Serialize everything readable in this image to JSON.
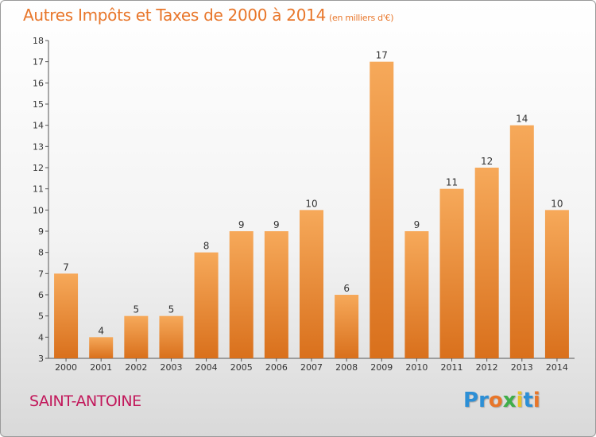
{
  "header": {
    "title": "Autres Impôts et Taxes de 2000 à 2014",
    "unit": "(en milliers d'€)"
  },
  "footer": {
    "commune": "SAINT-ANTOINE",
    "logo_letters": [
      {
        "ch": "P",
        "color": "#2c8fd6"
      },
      {
        "ch": "r",
        "color": "#2c8fd6"
      },
      {
        "ch": "o",
        "color": "#e8762a"
      },
      {
        "ch": "x",
        "color": "#3fae49"
      },
      {
        "ch": "i",
        "color": "#e8c22a"
      },
      {
        "ch": "t",
        "color": "#2c8fd6"
      },
      {
        "ch": "i",
        "color": "#e8762a"
      }
    ]
  },
  "colors": {
    "accent": "#e8762a",
    "bar_light": "#f6a95a",
    "bar_dark": "#d9701c",
    "commune": "#c2185b"
  },
  "chart_data": {
    "type": "bar",
    "title": "Autres Impôts et Taxes de 2000 à 2014",
    "xlabel": "",
    "ylabel": "",
    "categories": [
      "2000",
      "2001",
      "2002",
      "2003",
      "2004",
      "2005",
      "2006",
      "2007",
      "2008",
      "2009",
      "2010",
      "2011",
      "2012",
      "2013",
      "2014"
    ],
    "values": [
      7,
      4,
      5,
      5,
      8,
      9,
      9,
      10,
      6,
      17,
      9,
      11,
      12,
      14,
      10
    ],
    "ylim": [
      3,
      18
    ],
    "yticks": [
      3,
      4,
      5,
      6,
      7,
      8,
      9,
      10,
      11,
      12,
      13,
      14,
      15,
      16,
      17,
      18
    ],
    "grid": false,
    "legend": "none"
  }
}
